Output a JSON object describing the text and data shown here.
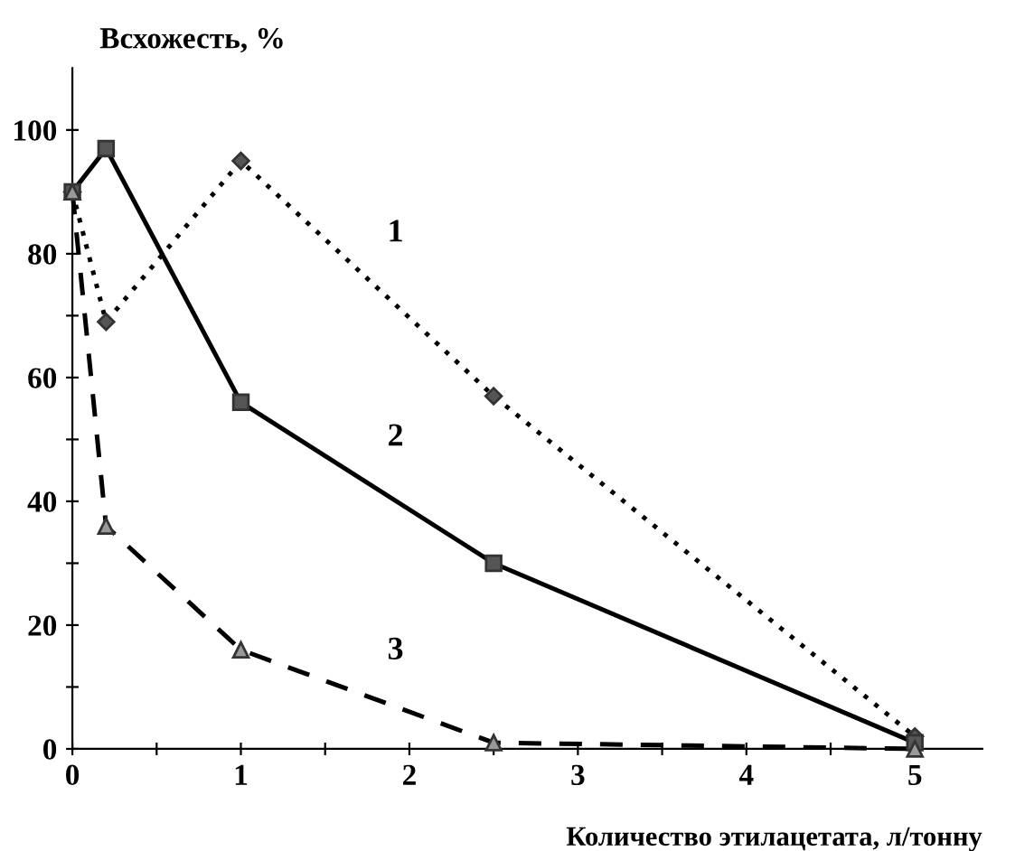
{
  "chart_data": {
    "type": "line",
    "xlabel": "Количество этилацетата, л/тонну",
    "ylabel": "Всхожесть, %",
    "xlim": [
      0,
      5.4
    ],
    "ylim": [
      0,
      110
    ],
    "xticks": [
      0,
      {
        "value": 0.5,
        "label": null
      },
      1,
      {
        "value": 1.5,
        "label": null
      },
      2,
      {
        "value": 2.5,
        "label": null
      },
      3,
      {
        "value": 3.5,
        "label": null
      },
      4,
      {
        "value": 4.5,
        "label": null
      },
      5
    ],
    "yticks": [
      0,
      {
        "value": 10,
        "label": null
      },
      20,
      {
        "value": 30,
        "label": null
      },
      40,
      {
        "value": 50,
        "label": null
      },
      60,
      {
        "value": 70,
        "label": null
      },
      80,
      {
        "value": 90,
        "label": null
      },
      100
    ],
    "grid": false,
    "legend": false,
    "series": [
      {
        "name": "1",
        "x": [
          0,
          0.2,
          1,
          2.5,
          5
        ],
        "values": [
          90,
          69,
          95,
          57,
          2
        ],
        "color": "#555555",
        "marker": "diamond",
        "line_style": "dotted"
      },
      {
        "name": "2",
        "x": [
          0,
          0.2,
          1,
          2.5,
          5
        ],
        "values": [
          90,
          97,
          56,
          30,
          1
        ],
        "color": "#555555",
        "marker": "square",
        "line_style": "solid"
      },
      {
        "name": "3",
        "x": [
          0,
          0.2,
          1,
          2.5,
          5
        ],
        "values": [
          90,
          36,
          16,
          1,
          0
        ],
        "color": "#999999",
        "marker": "triangle",
        "line_style": "dashed"
      }
    ]
  }
}
